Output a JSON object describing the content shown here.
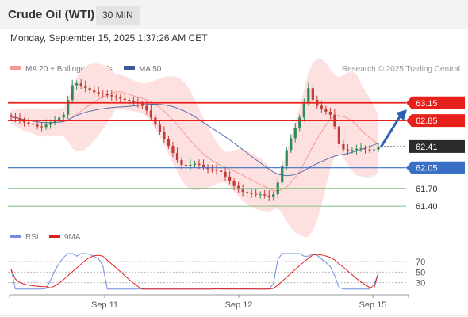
{
  "header": {
    "title": "Crude Oil (WTI)",
    "timeframe": "30 MIN",
    "datetime": "Monday, September 15, 2025 1:37:26 AM CET"
  },
  "legend": {
    "ma20": "MA 20 + Bollinger Bands",
    "ma50": "MA 50",
    "copyright": "Research © 2025 Trading Central"
  },
  "rsi_legend": {
    "rsi": "RSI",
    "ma9": "9MA"
  },
  "colors": {
    "resistance": "#e8201c",
    "support_blue": "#3a6fc6",
    "support_green": "#7fbf7f",
    "candle_up": "#2e8b57",
    "candle_down": "#c23b36",
    "bollinger_fill": "#fde1e1",
    "ma20": "#f59a94",
    "ma50": "#5a6fa8",
    "current_price_bg": "#2b2b2b",
    "arrow": "#2b5fb3",
    "rsi_line": "#6f8fe0",
    "rsi_ma": "#e02020"
  },
  "chart_data": {
    "type": "candlestick",
    "instrument": "Crude Oil (WTI)",
    "interval": "30 MIN",
    "y_range": [
      61.2,
      63.55
    ],
    "x_ticks": [
      "Sep 11",
      "Sep 12",
      "Sep 15"
    ],
    "key_levels": [
      {
        "value": 63.15,
        "label": "63.15",
        "kind": "resistance"
      },
      {
        "value": 62.85,
        "label": "62.85",
        "kind": "resistance"
      },
      {
        "value": 62.41,
        "label": "62.41",
        "kind": "current"
      },
      {
        "value": 62.05,
        "label": "62.05",
        "kind": "pivot"
      },
      {
        "value": 61.7,
        "label": "61.70",
        "kind": "support"
      },
      {
        "value": 61.4,
        "label": "61.40",
        "kind": "support"
      }
    ],
    "closes": [
      62.91,
      62.89,
      62.85,
      62.82,
      62.8,
      62.78,
      62.75,
      62.74,
      62.78,
      62.82,
      62.86,
      62.9,
      62.95,
      63.2,
      63.45,
      63.48,
      63.44,
      63.4,
      63.36,
      63.33,
      63.31,
      63.3,
      63.28,
      63.26,
      63.24,
      63.22,
      63.2,
      63.18,
      63.16,
      63.14,
      63.1,
      63.02,
      62.9,
      62.78,
      62.66,
      62.54,
      62.42,
      62.3,
      62.18,
      62.1,
      62.09,
      62.1,
      62.12,
      62.1,
      62.06,
      62.03,
      62.02,
      62.0,
      61.98,
      61.9,
      61.82,
      61.74,
      61.68,
      61.64,
      61.62,
      61.61,
      61.6,
      61.6,
      61.58,
      61.55,
      61.6,
      61.8,
      62.08,
      62.35,
      62.55,
      62.72,
      62.9,
      63.15,
      63.4,
      63.2,
      63.1,
      63.05,
      63.0,
      62.95,
      62.75,
      62.45,
      62.36,
      62.34,
      62.35,
      62.37,
      62.38,
      62.36,
      62.35,
      62.36,
      62.41
    ],
    "ma20_range": [
      62.3,
      63.3
    ],
    "ma50_range": [
      61.9,
      63.1
    ],
    "rsi": {
      "levels": [
        70,
        50,
        30
      ],
      "last_rsi": 48,
      "last_ma9": 49
    },
    "forecast_arrow": {
      "from": 62.41,
      "to": 63.05
    }
  }
}
